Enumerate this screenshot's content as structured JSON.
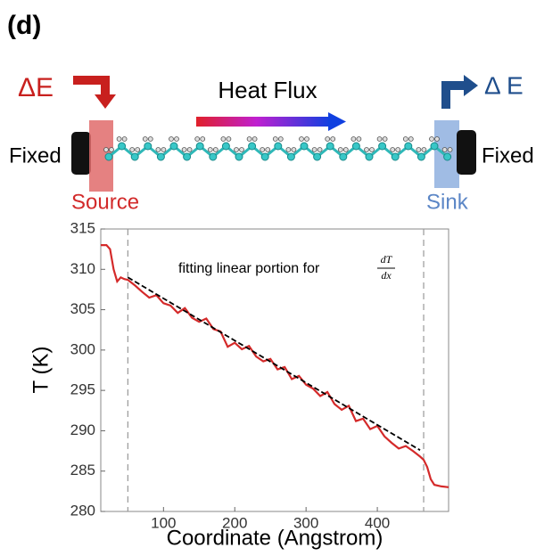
{
  "panel_label": "(d)",
  "diagram": {
    "delta_in": "ΔE",
    "delta_out": "Δ E",
    "flux": "Heat Flux",
    "fixed_left": "Fixed",
    "fixed_right": "Fixed",
    "source": "Source",
    "sink": "Sink"
  },
  "chart_data": {
    "type": "line",
    "xlabel": "Coordinate (Angstrom)",
    "ylabel": "T (K)",
    "annotation": {
      "text": "fitting linear portion for",
      "numerator": "dT",
      "denominator": "dx"
    },
    "xlim": [
      12,
      500
    ],
    "ylim": [
      280,
      315
    ],
    "xticks": [
      100,
      200,
      300,
      400
    ],
    "yticks": [
      280,
      285,
      290,
      295,
      300,
      305,
      310,
      315
    ],
    "reference_lines": {
      "x": [
        50,
        465
      ],
      "color": "#999999"
    },
    "series": [
      {
        "color": "#d42a2a",
        "x": [
          12,
          20,
          25,
          30,
          35,
          40,
          45,
          50,
          60,
          70,
          80,
          90,
          100,
          110,
          120,
          130,
          140,
          150,
          160,
          170,
          180,
          190,
          200,
          210,
          220,
          230,
          240,
          250,
          260,
          270,
          280,
          290,
          300,
          310,
          320,
          330,
          340,
          350,
          360,
          370,
          380,
          390,
          400,
          410,
          420,
          430,
          440,
          450,
          460,
          465,
          470,
          475,
          480,
          490,
          500
        ],
        "values": [
          313,
          313,
          312.5,
          310,
          308.5,
          309,
          308.8,
          308.7,
          308,
          307.2,
          306.5,
          306.8,
          305.8,
          305.5,
          304.6,
          305.2,
          304,
          303.5,
          303.9,
          302.6,
          302.3,
          300.4,
          300.9,
          300.1,
          300.5,
          299.2,
          298.6,
          298.9,
          297.6,
          297.9,
          296.4,
          296.8,
          295.7,
          295.2,
          294.3,
          294.8,
          293.3,
          292.6,
          293.1,
          291.2,
          291.5,
          290.2,
          290.6,
          289.3,
          288.5,
          287.8,
          288.1,
          287.5,
          286.8,
          286.4,
          285.5,
          284,
          283.3,
          283.1,
          283
        ]
      },
      {
        "color": "#000000",
        "dashed": true,
        "x": [
          50,
          460
        ],
        "values": [
          309,
          287.6
        ]
      }
    ]
  }
}
